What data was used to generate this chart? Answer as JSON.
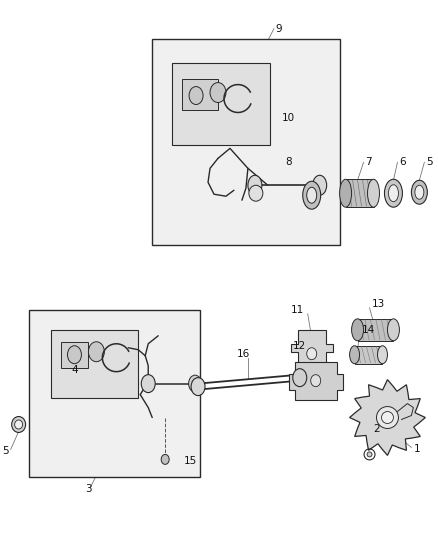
{
  "bg_color": "#ffffff",
  "line_color": "#2a2a2a",
  "gray_fill": "#e8e8e8",
  "gray_dark": "#b0b0b0",
  "panel_fill": "#f0f0f0",
  "label_color": "#111111",
  "leader_color": "#777777"
}
